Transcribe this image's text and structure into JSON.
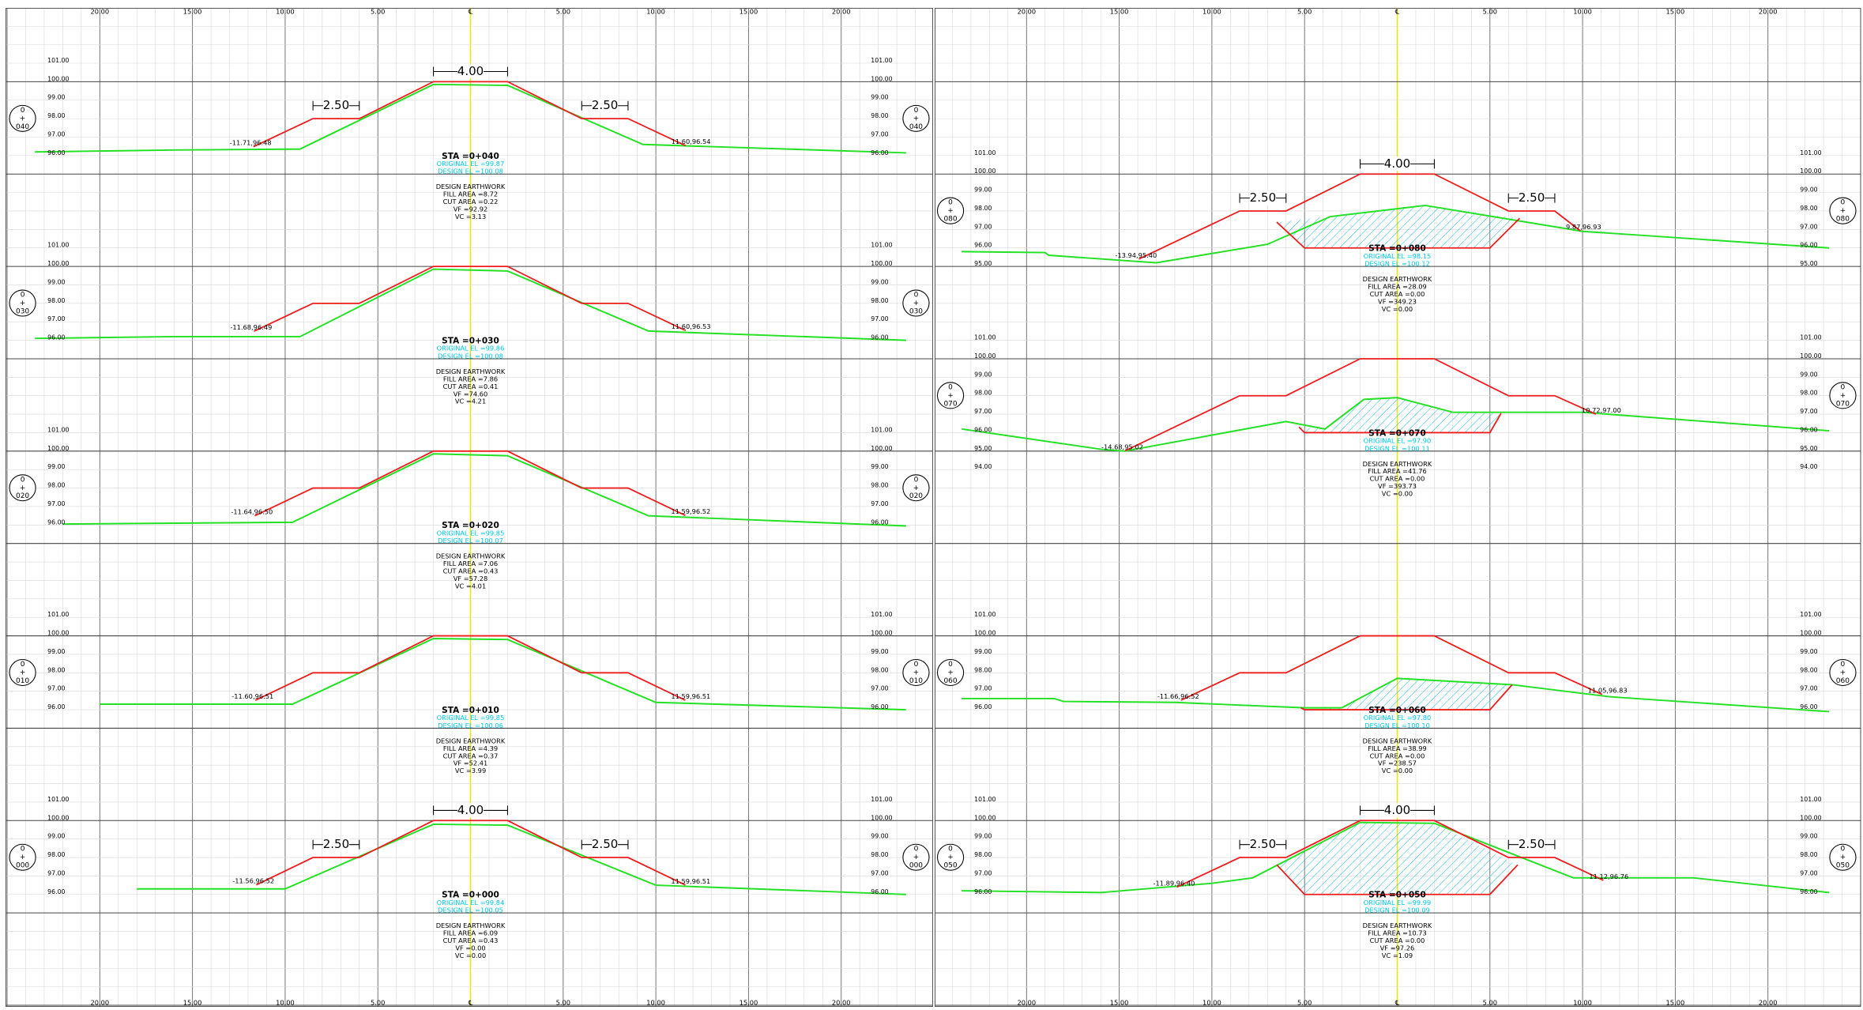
{
  "ruler": {
    "labels": [
      "20.00",
      "15.00",
      "10.00",
      "5.00",
      "℄",
      "5.00",
      "10.00",
      "15.00",
      "20.00"
    ]
  },
  "sections": [
    {
      "station": [
        "0",
        "+",
        "040"
      ],
      "sta": "STA =0+040",
      "original": "ORIGINAL EL =99.87",
      "design": "DESIGN EL =100.08",
      "earthwork": [
        "DESIGN EARTHWORK",
        "FILL AREA =8.72",
        "CUT AREA =0.22",
        "VF =92.92",
        "VC =3.13"
      ],
      "catch": [
        "-11.71,96.48",
        "11.60,96.54"
      ],
      "elevations": [
        "101.00",
        "100.00",
        "99.00",
        "98.00",
        "97.00",
        "96.00"
      ],
      "dims": [
        "4.00",
        "2.50",
        "2.50"
      ]
    },
    {
      "station": [
        "0",
        "+",
        "030"
      ],
      "sta": "STA =0+030",
      "original": "ORIGINAL EL =99.86",
      "design": "DESIGN EL =100.08",
      "earthwork": [
        "DESIGN EARTHWORK",
        "FILL AREA =7.86",
        "CUT AREA =0.41",
        "VF =74.60",
        "VC =4.21"
      ],
      "catch": [
        "-11.68,96.49",
        "11.60,96.53"
      ],
      "elevations": [
        "101.00",
        "100.00",
        "99.00",
        "98.00",
        "97.00",
        "96.00"
      ]
    },
    {
      "station": [
        "0",
        "+",
        "020"
      ],
      "sta": "STA =0+020",
      "original": "ORIGINAL EL =99.85",
      "design": "DESIGN EL =100.07",
      "earthwork": [
        "DESIGN EARTHWORK",
        "FILL AREA =7.06",
        "CUT AREA =0.43",
        "VF =57.28",
        "VC =4.01"
      ],
      "catch": [
        "-11.64,96.50",
        "11.59,96.52"
      ],
      "elevations": [
        "101.00",
        "100.00",
        "99.00",
        "98.00",
        "97.00",
        "96.00"
      ]
    },
    {
      "station": [
        "0",
        "+",
        "010"
      ],
      "sta": "STA =0+010",
      "original": "ORIGINAL EL =99.85",
      "design": "DESIGN EL =100.06",
      "earthwork": [
        "DESIGN EARTHWORK",
        "FILL AREA =4.39",
        "CUT AREA =0.37",
        "VF =52.41",
        "VC =3.99"
      ],
      "catch": [
        "-11.60,96.51",
        "11.59,96.51"
      ],
      "elevations": [
        "101.00",
        "100.00",
        "99.00",
        "98.00",
        "97.00",
        "96.00"
      ]
    },
    {
      "station": [
        "0",
        "+",
        "000"
      ],
      "sta": "STA =0+000",
      "original": "ORIGINAL EL =99.84",
      "design": "DESIGN EL =100.05",
      "earthwork": [
        "DESIGN EARTHWORK",
        "FILL AREA =6.09",
        "CUT AREA =0.43",
        "VF =0.00",
        "VC =0.00"
      ],
      "catch": [
        "-11.56,96.52",
        "11.59,96.51"
      ],
      "elevations": [
        "101.00",
        "100.00",
        "99.00",
        "98.00",
        "97.00",
        "96.00"
      ],
      "dims": [
        "4.00",
        "2.50",
        "2.50"
      ]
    },
    {
      "station": [
        "0",
        "+",
        "080"
      ],
      "sta": "STA =0+080",
      "original": "ORIGINAL EL =98.15",
      "design": "DESIGN EL =100.12",
      "earthwork": [
        "DESIGN EARTHWORK",
        "FILL AREA =28.09",
        "CUT AREA =0.00",
        "VF =349.23",
        "VC =0.00"
      ],
      "catch": [
        "-13.94,95.40",
        "9.87,96.93"
      ],
      "elevations": [
        "101.00",
        "100.00",
        "99.00",
        "98.00",
        "97.00",
        "96.00",
        "95.00"
      ],
      "dims": [
        "4.00",
        "2.50",
        "2.50"
      ]
    },
    {
      "station": [
        "0",
        "+",
        "070"
      ],
      "sta": "STA =0+070",
      "original": "ORIGINAL EL =97.90",
      "design": "DESIGN EL =100.11",
      "earthwork": [
        "DESIGN EARTHWORK",
        "FILL AREA =41.76",
        "CUT AREA =0.00",
        "VF =393.73",
        "VC =0.00"
      ],
      "catch": [
        "-14.68,95.02",
        "10.72,97.00"
      ],
      "elevations": [
        "101.00",
        "100.00",
        "99.00",
        "98.00",
        "97.00",
        "96.00",
        "95.00",
        "94.00"
      ]
    },
    {
      "station": [
        "0",
        "+",
        "060"
      ],
      "sta": "STA =0+060",
      "original": "ORIGINAL EL =97.80",
      "design": "DESIGN EL =100.10",
      "earthwork": [
        "DESIGN EARTHWORK",
        "FILL AREA =38.99",
        "CUT AREA =0.00",
        "VF =238.57",
        "VC =0.00"
      ],
      "catch": [
        "-11.66,96.52",
        "11.05,96.83"
      ],
      "elevations": [
        "101.00",
        "100.00",
        "99.00",
        "98.00",
        "97.00",
        "96.00"
      ]
    },
    {
      "station": [
        "0",
        "+",
        "050"
      ],
      "sta": "STA =0+050",
      "original": "ORIGINAL EL =99.99",
      "design": "DESIGN EL =100.09",
      "earthwork": [
        "DESIGN EARTHWORK",
        "FILL AREA =10.73",
        "CUT AREA =0.00",
        "VF =97.26",
        "VC =1.09"
      ],
      "catch": [
        "-11.89,96.40",
        "11.12,96.76"
      ],
      "elevations": [
        "101.00",
        "100.00",
        "99.00",
        "98.00",
        "97.00",
        "96.00"
      ],
      "dims": [
        "4.00",
        "2.50",
        "2.50"
      ]
    }
  ]
}
